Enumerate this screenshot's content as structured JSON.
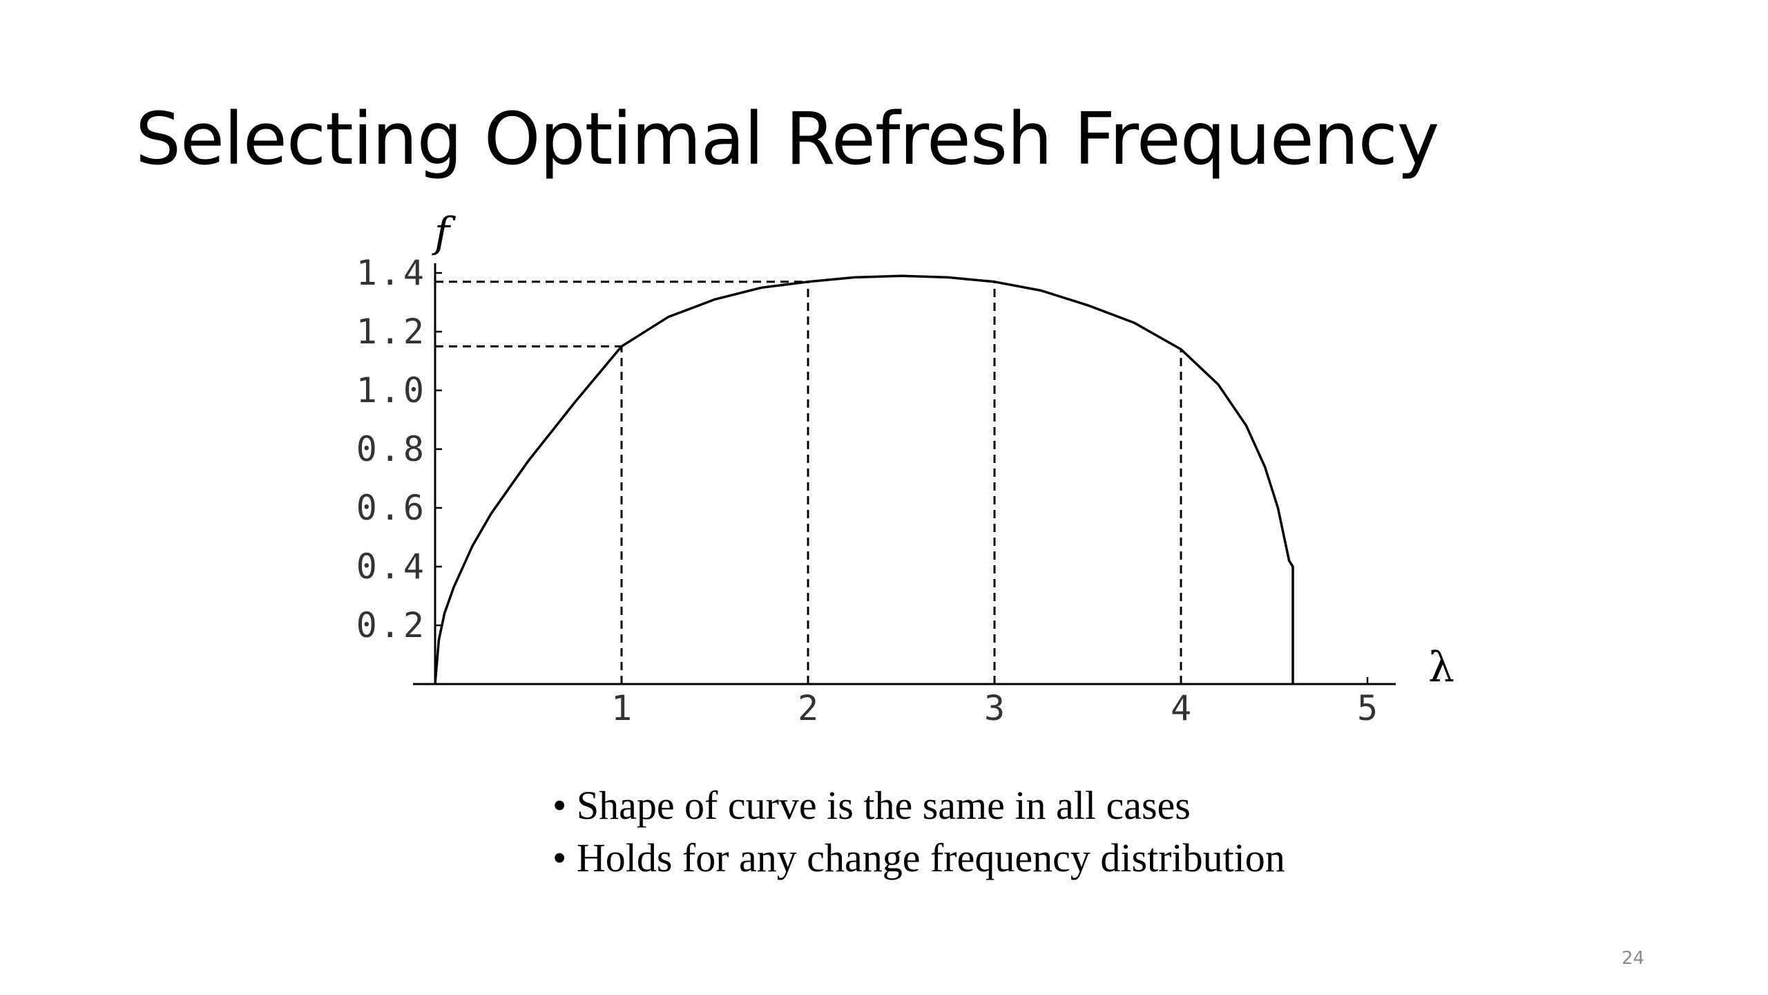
{
  "slide": {
    "title": "Selecting Optimal Refresh Frequency",
    "bullets": [
      "Shape of curve is the same in all cases",
      "Holds for any change frequency distribution"
    ],
    "page_number": "24"
  },
  "chart_data": {
    "type": "line",
    "ylabel": "f",
    "xlabel": "λ",
    "xlim": [
      0,
      5.1
    ],
    "ylim": [
      0,
      1.4
    ],
    "x_ticks": [
      1,
      2,
      3,
      4,
      5
    ],
    "x_tick_labels": [
      "1",
      "2",
      "3",
      "4",
      "5"
    ],
    "y_ticks": [
      0.2,
      0.4,
      0.6,
      0.8,
      1.0,
      1.2,
      1.4
    ],
    "y_tick_labels": [
      "0.2",
      "0.4",
      "0.6",
      "0.8",
      "1.0",
      "1.2",
      "1.4"
    ],
    "grid": false,
    "series": [
      {
        "x": [
          0,
          0.02,
          0.05,
          0.1,
          0.2,
          0.3,
          0.5,
          0.75,
          1.0,
          1.25,
          1.5,
          1.75,
          2.0,
          2.25,
          2.5,
          2.75,
          3.0,
          3.25,
          3.5,
          3.75,
          4.0,
          4.2,
          4.35,
          4.45,
          4.52,
          4.56,
          4.58,
          4.6,
          4.6
        ],
        "y": [
          0,
          0.15,
          0.24,
          0.33,
          0.47,
          0.58,
          0.76,
          0.96,
          1.15,
          1.25,
          1.31,
          1.35,
          1.37,
          1.385,
          1.39,
          1.385,
          1.37,
          1.34,
          1.29,
          1.23,
          1.14,
          1.02,
          0.88,
          0.74,
          0.6,
          0.48,
          0.42,
          0.4,
          0
        ]
      }
    ],
    "guides": [
      {
        "x": 1,
        "y": 1.15
      },
      {
        "x": 2,
        "y": 1.37
      },
      {
        "x": 3,
        "y": 1.37
      },
      {
        "x": 4,
        "y": 1.14
      }
    ]
  },
  "icons": {
    "bullet": "bullet-dot"
  }
}
